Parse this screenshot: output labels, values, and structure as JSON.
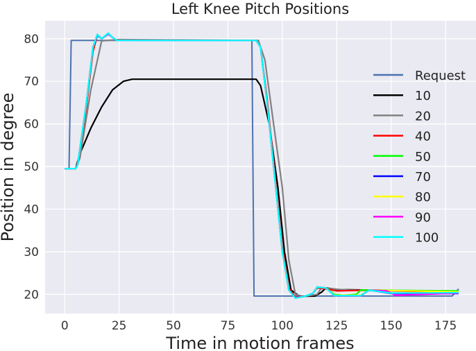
{
  "chart_data": {
    "type": "line",
    "title": "Left Knee Pitch Positions",
    "xlabel": "Time in motion frames",
    "ylabel": "Position in degree",
    "xlim": [
      -9,
      189
    ],
    "ylim": [
      15.5,
      84.2
    ],
    "xticks": [
      0,
      25,
      50,
      75,
      100,
      125,
      150,
      175
    ],
    "yticks": [
      20,
      30,
      40,
      50,
      60,
      70,
      80
    ],
    "grid": true,
    "legend": "right",
    "series": [
      {
        "name": "Request",
        "color": "#4c72b0",
        "x": [
          0,
          2,
          3,
          86,
          87,
          178,
          181
        ],
        "y": [
          49.5,
          49.5,
          79.6,
          79.6,
          19.6,
          19.6,
          21.3
        ]
      },
      {
        "name": "10",
        "color": "#000000",
        "x": [
          0,
          5,
          7,
          12,
          17,
          22,
          27,
          31,
          88,
          90,
          94,
          98,
          101,
          104,
          108,
          115,
          118,
          120,
          126,
          140,
          181
        ],
        "y": [
          49.5,
          49.5,
          53,
          59,
          64,
          68,
          70,
          70.5,
          70.5,
          69,
          60,
          45,
          30,
          21,
          19.5,
          19.6,
          20.5,
          21.5,
          21.1,
          21,
          20.7
        ]
      },
      {
        "name": "20",
        "color": "#808080",
        "x": [
          0,
          5,
          7,
          12,
          17,
          25,
          89,
          92,
          96,
          100,
          103,
          106,
          110,
          116,
          118,
          130,
          181
        ],
        "y": [
          49.5,
          49.5,
          52,
          68,
          79.5,
          79.8,
          79.6,
          75,
          60,
          45,
          28,
          20,
          19.5,
          20,
          21.5,
          21,
          20.5
        ]
      },
      {
        "name": "40",
        "color": "#ff0000",
        "x": [
          0,
          5,
          6,
          10,
          13,
          15,
          17,
          20,
          22,
          24,
          88,
          90,
          93,
          97,
          100,
          103,
          106,
          110,
          114,
          116,
          120,
          125,
          140,
          181
        ],
        "y": [
          49.5,
          49.5,
          50.5,
          64,
          77,
          80.8,
          80,
          81.2,
          80.3,
          79.6,
          79.6,
          78,
          66,
          46,
          31,
          21.5,
          19.3,
          19.5,
          20.2,
          21.5,
          21.3,
          20.8,
          21,
          20.4
        ]
      },
      {
        "name": "50",
        "color": "#00ff00",
        "x": [
          0,
          5,
          6,
          10,
          13,
          15,
          17,
          20,
          22,
          24,
          88,
          90,
          93,
          97,
          100,
          103,
          106,
          110,
          114,
          116,
          120,
          124,
          128,
          134,
          136,
          140,
          181
        ],
        "y": [
          49.5,
          49.5,
          50.5,
          65,
          78,
          81,
          80,
          81.3,
          80.3,
          79.6,
          79.6,
          78,
          65,
          45,
          30,
          21,
          19.2,
          19.5,
          20.2,
          21.7,
          21.5,
          20,
          19.8,
          20,
          21,
          21,
          20.8
        ]
      },
      {
        "name": "70",
        "color": "#0000ff",
        "x": [
          0,
          5,
          6,
          10,
          13,
          15,
          17,
          20,
          22,
          24,
          88,
          90,
          93,
          97,
          100,
          103,
          106,
          110,
          114,
          116,
          120,
          124,
          136,
          140,
          150,
          181
        ],
        "y": [
          49.5,
          49.5,
          50.5,
          65,
          78,
          80.8,
          80,
          81.1,
          80.3,
          79.6,
          79.6,
          78,
          65,
          45,
          30,
          21,
          19.2,
          19.5,
          20.2,
          21.7,
          21.5,
          19.7,
          19.7,
          21,
          20.2,
          20.2
        ]
      },
      {
        "name": "80",
        "color": "#ffff00",
        "x": [
          0,
          5,
          6,
          10,
          13,
          15,
          17,
          20,
          22,
          24,
          88,
          90,
          93,
          97,
          100,
          103,
          106,
          110,
          114,
          116,
          120,
          124,
          136,
          140,
          181
        ],
        "y": [
          49.5,
          49.5,
          50.5,
          65,
          78,
          81,
          80,
          81.2,
          80.3,
          79.6,
          79.6,
          78,
          65,
          45,
          30,
          21,
          19.2,
          19.5,
          20.2,
          21.7,
          21.5,
          19.8,
          19.8,
          21,
          20.6
        ]
      },
      {
        "name": "90",
        "color": "#ff00ff",
        "x": [
          0,
          5,
          6,
          10,
          13,
          15,
          17,
          20,
          22,
          24,
          88,
          90,
          93,
          97,
          100,
          103,
          106,
          110,
          114,
          116,
          120,
          124,
          136,
          140,
          148,
          152,
          181
        ],
        "y": [
          49.5,
          49.5,
          50.5,
          65,
          78,
          81,
          80,
          81.2,
          80.3,
          79.6,
          79.6,
          78,
          65,
          45,
          30,
          21,
          19.2,
          19.5,
          20.2,
          21.7,
          21.5,
          19.7,
          19.7,
          21,
          20.8,
          19.8,
          20.3
        ]
      },
      {
        "name": "100",
        "color": "#00ffff",
        "x": [
          0,
          5,
          6,
          10,
          13,
          15,
          17,
          20,
          22,
          24,
          88,
          90,
          93,
          97,
          100,
          103,
          106,
          110,
          114,
          116,
          120,
          124,
          136,
          140,
          150,
          181
        ],
        "y": [
          49.5,
          49.5,
          50.5,
          65,
          78,
          81,
          80,
          81.3,
          80.3,
          79.6,
          79.6,
          78,
          65,
          45,
          30,
          21,
          19.1,
          19.5,
          20.2,
          21.7,
          21.5,
          19.7,
          19.7,
          21,
          20.3,
          20.4
        ]
      }
    ]
  }
}
